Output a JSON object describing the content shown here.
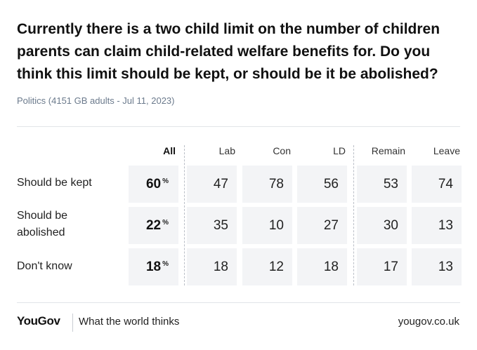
{
  "title": "Currently there is a two child limit on the number of children parents can claim child-related welfare benefits for. Do you think this limit should be kept, or should be it be abolished?",
  "meta": "Politics (4151 GB adults - Jul 11, 2023)",
  "footer": {
    "logo": "YouGov",
    "tagline": "What the world thinks",
    "url": "yougov.co.uk"
  },
  "chart_data": {
    "type": "table",
    "unit": "%",
    "columns": [
      "All",
      "Lab",
      "Con",
      "LD",
      "Remain",
      "Leave"
    ],
    "rows": [
      {
        "label": "Should be kept",
        "values": [
          60,
          47,
          78,
          56,
          53,
          74
        ]
      },
      {
        "label": "Should be abolished",
        "values": [
          22,
          35,
          10,
          27,
          30,
          13
        ]
      },
      {
        "label": "Don't know",
        "values": [
          18,
          18,
          12,
          18,
          17,
          13
        ]
      }
    ]
  }
}
